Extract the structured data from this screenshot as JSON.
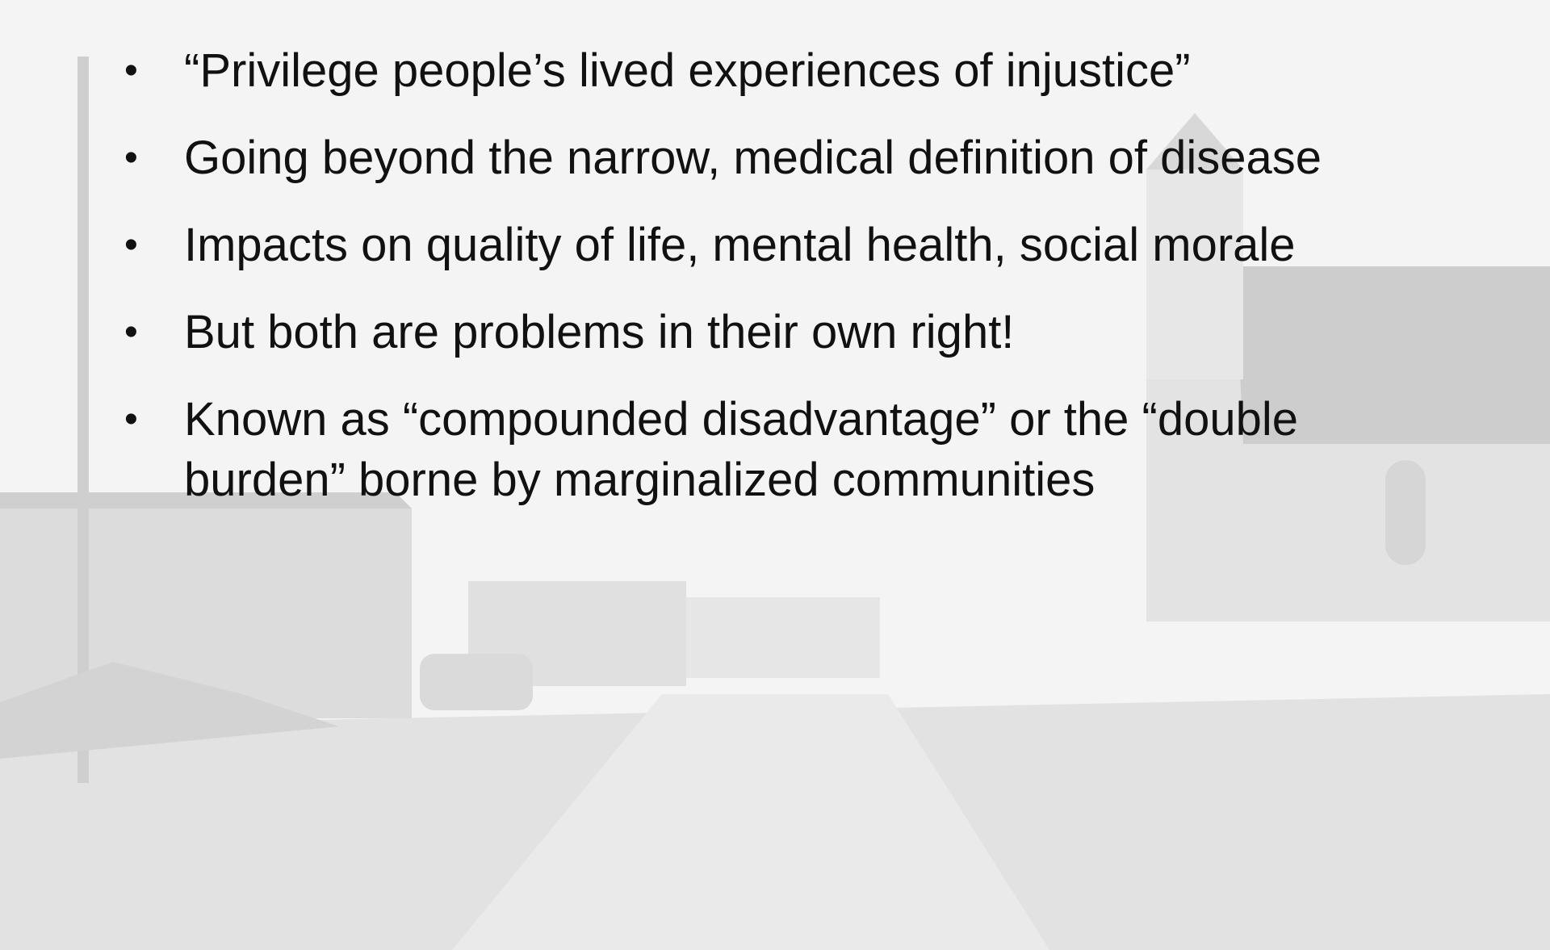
{
  "bullets": [
    "“Privilege people’s lived experiences of injustice”",
    "Going beyond the narrow, medical definition of disease",
    "Impacts on quality of life, mental health, social morale",
    "But both are problems in their own right!",
    "Known as “compounded disadvantage” or the “double burden” borne by marginalized communities"
  ]
}
